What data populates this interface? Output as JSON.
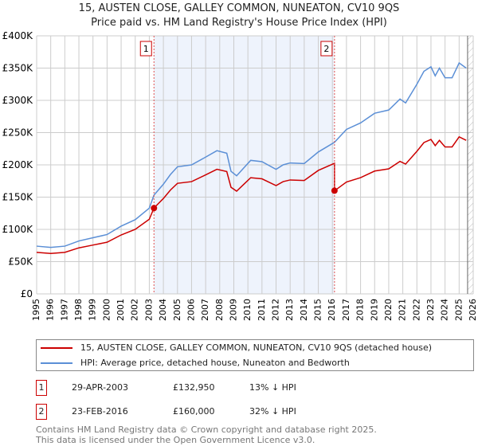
{
  "title": "15, AUSTEN CLOSE, GALLEY COMMON, NUNEATON, CV10 9QS",
  "subtitle": "Price paid vs. HM Land Registry's House Price Index (HPI)",
  "chart_data": {
    "type": "line",
    "ylim": [
      0,
      400000
    ],
    "xlim": [
      1995,
      2026
    ],
    "yticks": [
      "£0",
      "£50K",
      "£100K",
      "£150K",
      "£200K",
      "£250K",
      "£300K",
      "£350K",
      "£400K"
    ],
    "xticks": [
      "1995",
      "1996",
      "1997",
      "1998",
      "1999",
      "2000",
      "2001",
      "2002",
      "2003",
      "2004",
      "2005",
      "2006",
      "2007",
      "2008",
      "2009",
      "2010",
      "2011",
      "2012",
      "2013",
      "2014",
      "2015",
      "2016",
      "2017",
      "2018",
      "2019",
      "2020",
      "2021",
      "2022",
      "2023",
      "2024",
      "2025",
      "2026"
    ],
    "grid": true,
    "shaded_range": [
      2003.33,
      2016.15
    ],
    "data_end": 2025.6,
    "series": [
      {
        "name": "HPI: Average price, detached house, Nuneaton and Bedworth",
        "color": "#5b8fd6",
        "x": [
          1995,
          1996,
          1997,
          1998,
          1999,
          2000,
          2001,
          2002,
          2003,
          2003.33,
          2004,
          2004.5,
          2005,
          2006,
          2007,
          2007.8,
          2008.5,
          2008.8,
          2009.2,
          2009.7,
          2010.2,
          2011,
          2012,
          2012.5,
          2013,
          2014,
          2015,
          2016.15,
          2017,
          2018,
          2019,
          2020,
          2020.8,
          2021.2,
          2022,
          2022.5,
          2023,
          2023.3,
          2023.6,
          2024,
          2024.5,
          2025,
          2025.5
        ],
        "y": [
          74000,
          72000,
          74000,
          82000,
          87000,
          92000,
          105000,
          115000,
          133000,
          153000,
          170000,
          185000,
          197000,
          200000,
          212000,
          222000,
          218000,
          190000,
          183000,
          195000,
          207000,
          205000,
          193000,
          200000,
          203000,
          202000,
          220000,
          235000,
          255000,
          265000,
          280000,
          285000,
          302000,
          296000,
          325000,
          345000,
          352000,
          338000,
          350000,
          335000,
          335000,
          358000,
          350000
        ]
      },
      {
        "name": "15, AUSTEN CLOSE, GALLEY COMMON, NUNEATON, CV10 9QS (detached house)",
        "color": "#cc0000",
        "hpi_ratio_before": 0.87,
        "hpi_ratio_after": 0.68
      }
    ],
    "sales": [
      {
        "label": "1",
        "x": 2003.33,
        "y": 132950
      },
      {
        "label": "2",
        "x": 2016.15,
        "y": 160000
      }
    ]
  },
  "legend": [
    "15, AUSTEN CLOSE, GALLEY COMMON, NUNEATON, CV10 9QS (detached house)",
    "HPI: Average price, detached house, Nuneaton and Bedworth"
  ],
  "transactions": [
    {
      "num": "1",
      "date": "29-APR-2003",
      "price": "£132,950",
      "diff": "13% ↓ HPI"
    },
    {
      "num": "2",
      "date": "23-FEB-2016",
      "price": "£160,000",
      "diff": "32% ↓ HPI"
    }
  ],
  "footer": [
    "Contains HM Land Registry data © Crown copyright and database right 2025.",
    "This data is licensed under the Open Government Licence v3.0."
  ]
}
